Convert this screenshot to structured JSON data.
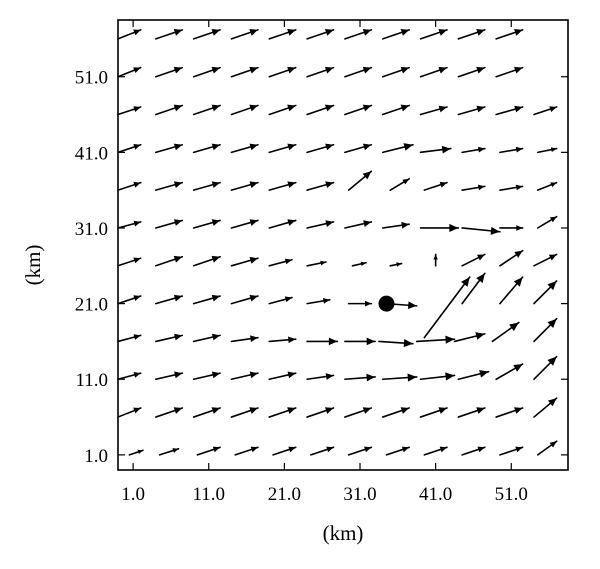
{
  "chart_data": {
    "type": "quiver",
    "xlabel": "(km)",
    "ylabel": "(km)",
    "xlim": [
      -1.0,
      58.5
    ],
    "ylim": [
      -1.0,
      58.5
    ],
    "xticks": [
      "1.0",
      "11.0",
      "21.0",
      "31.0",
      "41.0",
      "51.0"
    ],
    "yticks": [
      "1.0",
      "11.0",
      "21.0",
      "31.0",
      "41.0",
      "51.0"
    ],
    "grid": false,
    "marker": {
      "x": 34.5,
      "y": 21.0,
      "shape": "filled-circle"
    },
    "arrow_color": "#000000",
    "vectors": [
      {
        "y": 1.0,
        "points": [
          [
            0.5,
            1.0,
            1.8,
            0.6
          ],
          [
            4.5,
            1.0,
            2.5,
            0.8
          ],
          [
            9.5,
            1.0,
            3.0,
            1.0
          ],
          [
            14.5,
            1.0,
            3.0,
            1.0
          ],
          [
            19.5,
            1.0,
            3.0,
            1.0
          ],
          [
            24.5,
            1.0,
            3.0,
            1.0
          ],
          [
            29.5,
            1.0,
            3.0,
            1.0
          ],
          [
            34.5,
            1.0,
            3.0,
            1.0
          ],
          [
            39.5,
            1.0,
            3.0,
            1.0
          ],
          [
            44.5,
            1.0,
            3.0,
            1.0
          ],
          [
            49.5,
            1.0,
            3.0,
            1.0
          ],
          [
            54.5,
            1.0,
            2.5,
            1.8
          ]
        ]
      },
      {
        "y": 6.0,
        "points": [
          [
            -1.0,
            6.0,
            3.0,
            1.2
          ],
          [
            4.0,
            6.0,
            3.5,
            1.2
          ],
          [
            9.0,
            6.0,
            3.5,
            1.2
          ],
          [
            14.0,
            6.0,
            3.5,
            1.2
          ],
          [
            19.0,
            6.0,
            3.5,
            1.2
          ],
          [
            24.0,
            6.0,
            3.5,
            1.2
          ],
          [
            29.0,
            6.0,
            3.5,
            1.2
          ],
          [
            34.0,
            6.0,
            3.5,
            1.2
          ],
          [
            39.0,
            6.0,
            3.5,
            1.2
          ],
          [
            44.0,
            6.0,
            3.5,
            1.2
          ],
          [
            49.0,
            6.0,
            3.5,
            1.2
          ],
          [
            54.0,
            6.0,
            3.0,
            2.5
          ]
        ]
      },
      {
        "y": 11.0,
        "points": [
          [
            -1.0,
            11.0,
            3.0,
            0.8
          ],
          [
            4.0,
            11.0,
            3.5,
            0.8
          ],
          [
            9.0,
            11.0,
            3.5,
            0.8
          ],
          [
            14.0,
            11.0,
            3.5,
            0.8
          ],
          [
            19.0,
            11.0,
            3.5,
            0.8
          ],
          [
            24.0,
            11.0,
            3.5,
            0.5
          ],
          [
            29.0,
            11.0,
            4.0,
            0.3
          ],
          [
            34.0,
            11.0,
            4.5,
            0.3
          ],
          [
            39.0,
            11.0,
            4.5,
            0.5
          ],
          [
            44.0,
            11.0,
            4.0,
            1.0
          ],
          [
            49.0,
            11.0,
            3.5,
            2.0
          ],
          [
            54.0,
            11.0,
            3.0,
            3.0
          ]
        ]
      },
      {
        "y": 16.0,
        "points": [
          [
            -1.0,
            16.0,
            3.0,
            0.8
          ],
          [
            4.0,
            16.0,
            3.5,
            0.8
          ],
          [
            9.0,
            16.0,
            3.5,
            0.8
          ],
          [
            14.0,
            16.0,
            3.5,
            0.5
          ],
          [
            19.0,
            16.0,
            3.5,
            0.3
          ],
          [
            24.0,
            16.0,
            4.0,
            0.0
          ],
          [
            29.0,
            16.0,
            4.0,
            0.0
          ],
          [
            33.5,
            16.0,
            4.5,
            -0.3
          ],
          [
            38.5,
            16.0,
            5.0,
            0.3
          ],
          [
            43.5,
            16.0,
            4.0,
            1.0
          ],
          [
            48.5,
            16.0,
            3.5,
            2.5
          ],
          [
            54.0,
            16.0,
            3.0,
            3.0
          ]
        ]
      },
      {
        "y": 21.0,
        "points": [
          [
            -1.0,
            21.0,
            3.0,
            1.0
          ],
          [
            4.0,
            21.0,
            3.5,
            1.0
          ],
          [
            9.0,
            21.0,
            3.5,
            1.0
          ],
          [
            14.0,
            21.0,
            3.5,
            1.0
          ],
          [
            19.0,
            21.0,
            3.0,
            0.8
          ],
          [
            24.0,
            21.0,
            3.0,
            0.5
          ],
          [
            29.5,
            21.0,
            3.0,
            0.0
          ],
          [
            34.5,
            21.0,
            4.0,
            -0.3
          ],
          [
            39.5,
            16.5,
            6.0,
            8.0
          ],
          [
            44.5,
            21.0,
            3.0,
            4.0
          ],
          [
            49.5,
            21.0,
            3.0,
            3.5
          ],
          [
            54.0,
            21.0,
            3.0,
            3.0
          ]
        ]
      },
      {
        "y": 26.0,
        "points": [
          [
            -1.0,
            26.0,
            3.0,
            1.0
          ],
          [
            4.0,
            26.0,
            3.5,
            1.2
          ],
          [
            9.0,
            26.0,
            3.5,
            1.2
          ],
          [
            14.0,
            26.0,
            3.5,
            1.0
          ],
          [
            19.0,
            26.0,
            3.0,
            0.8
          ],
          [
            24.0,
            26.0,
            2.5,
            0.5
          ],
          [
            30.0,
            26.0,
            1.8,
            0.4
          ],
          [
            35.0,
            26.0,
            1.5,
            0.3
          ],
          [
            41.0,
            26.0,
            0.0,
            1.5
          ],
          [
            44.5,
            26.0,
            3.0,
            1.5
          ],
          [
            49.5,
            26.0,
            3.0,
            2.0
          ],
          [
            54.0,
            26.0,
            3.0,
            1.5
          ]
        ]
      },
      {
        "y": 31.0,
        "points": [
          [
            -1.0,
            31.0,
            3.0,
            0.8
          ],
          [
            4.0,
            31.0,
            3.5,
            1.0
          ],
          [
            9.0,
            31.0,
            3.5,
            1.0
          ],
          [
            14.0,
            31.0,
            3.5,
            1.0
          ],
          [
            19.0,
            31.0,
            3.5,
            1.0
          ],
          [
            24.0,
            31.0,
            3.5,
            0.8
          ],
          [
            29.0,
            31.0,
            3.5,
            0.8
          ],
          [
            34.0,
            31.0,
            3.5,
            0.5
          ],
          [
            39.0,
            31.0,
            5.0,
            0.0
          ],
          [
            44.5,
            31.0,
            5.0,
            -0.5
          ],
          [
            49.5,
            31.0,
            3.0,
            0.0
          ],
          [
            54.5,
            31.0,
            2.5,
            1.5
          ]
        ]
      },
      {
        "y": 36.0,
        "points": [
          [
            -1.0,
            36.0,
            3.0,
            1.0
          ],
          [
            4.0,
            36.0,
            3.5,
            1.0
          ],
          [
            9.0,
            36.0,
            3.5,
            1.0
          ],
          [
            14.0,
            36.0,
            3.5,
            1.0
          ],
          [
            19.0,
            36.0,
            3.5,
            1.0
          ],
          [
            24.0,
            36.0,
            3.5,
            1.0
          ],
          [
            29.5,
            36.0,
            3.0,
            2.5
          ],
          [
            35.0,
            36.0,
            2.5,
            1.5
          ],
          [
            39.5,
            36.0,
            3.0,
            1.0
          ],
          [
            44.5,
            36.0,
            3.0,
            0.5
          ],
          [
            49.5,
            36.0,
            3.0,
            0.5
          ],
          [
            54.5,
            36.0,
            2.5,
            1.0
          ]
        ]
      },
      {
        "y": 41.0,
        "points": [
          [
            -1.0,
            41.0,
            3.0,
            1.0
          ],
          [
            4.0,
            41.0,
            3.5,
            1.0
          ],
          [
            9.0,
            41.0,
            3.5,
            1.0
          ],
          [
            14.0,
            41.0,
            3.5,
            1.0
          ],
          [
            19.0,
            41.0,
            3.5,
            1.0
          ],
          [
            24.0,
            41.0,
            3.5,
            1.0
          ],
          [
            29.0,
            41.0,
            3.5,
            1.0
          ],
          [
            34.0,
            41.0,
            4.0,
            1.0
          ],
          [
            39.0,
            41.0,
            4.0,
            0.5
          ],
          [
            44.5,
            41.0,
            3.0,
            0.5
          ],
          [
            49.5,
            41.0,
            3.0,
            0.5
          ],
          [
            54.5,
            41.0,
            2.5,
            0.5
          ]
        ]
      },
      {
        "y": 46.0,
        "points": [
          [
            -1.0,
            46.0,
            3.0,
            1.0
          ],
          [
            4.0,
            46.0,
            3.5,
            1.2
          ],
          [
            9.0,
            46.0,
            3.5,
            1.2
          ],
          [
            14.0,
            46.0,
            3.5,
            1.2
          ],
          [
            19.0,
            46.0,
            3.5,
            1.2
          ],
          [
            24.0,
            46.0,
            3.5,
            1.2
          ],
          [
            29.0,
            46.0,
            3.5,
            1.2
          ],
          [
            34.0,
            46.0,
            3.5,
            1.2
          ],
          [
            39.0,
            46.0,
            3.5,
            1.0
          ],
          [
            44.0,
            46.0,
            3.5,
            1.0
          ],
          [
            49.0,
            46.0,
            3.5,
            1.0
          ],
          [
            54.0,
            46.0,
            3.0,
            1.0
          ]
        ]
      },
      {
        "y": 51.0,
        "points": [
          [
            -1.0,
            51.0,
            3.0,
            1.2
          ],
          [
            4.0,
            51.0,
            3.5,
            1.2
          ],
          [
            9.0,
            51.0,
            3.5,
            1.2
          ],
          [
            14.0,
            51.0,
            3.5,
            1.2
          ],
          [
            19.0,
            51.0,
            3.5,
            1.2
          ],
          [
            24.0,
            51.0,
            3.5,
            1.2
          ],
          [
            29.0,
            51.0,
            3.5,
            1.2
          ],
          [
            34.0,
            51.0,
            3.5,
            1.2
          ],
          [
            39.0,
            51.0,
            3.5,
            1.2
          ],
          [
            44.0,
            51.0,
            3.5,
            1.2
          ],
          [
            49.0,
            51.0,
            3.5,
            1.2
          ]
        ]
      },
      {
        "y": 56.0,
        "points": [
          [
            -1.0,
            56.0,
            3.0,
            1.2
          ],
          [
            4.0,
            56.0,
            3.5,
            1.2
          ],
          [
            9.0,
            56.0,
            3.5,
            1.2
          ],
          [
            14.0,
            56.0,
            3.5,
            1.2
          ],
          [
            19.0,
            56.0,
            3.5,
            1.2
          ],
          [
            24.0,
            56.0,
            3.5,
            1.2
          ],
          [
            29.0,
            56.0,
            3.5,
            1.2
          ],
          [
            34.0,
            56.0,
            3.5,
            1.2
          ],
          [
            39.0,
            56.0,
            3.5,
            1.2
          ],
          [
            44.0,
            56.0,
            3.5,
            1.2
          ],
          [
            49.0,
            56.0,
            3.5,
            1.2
          ]
        ]
      }
    ]
  }
}
